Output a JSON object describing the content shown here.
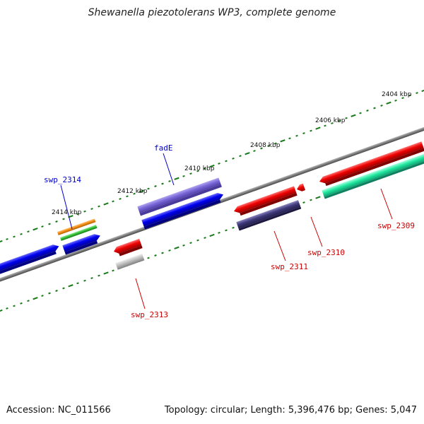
{
  "title": "Shewanella piezotolerans WP3, complete genome",
  "footer": {
    "accession": "Accession: NC_011566",
    "summary": "Topology: circular; Length: 5,396,476 bp; Genes: 5,047"
  },
  "scale_labels": [
    "2404 kbp",
    "2406 kbp",
    "2408 kbp",
    "2410 kbp",
    "2412 kbp",
    "2414 kbp"
  ],
  "gene_labels": {
    "swp_2314": "swp_2314",
    "fadE": "fadE",
    "swp_2313": "swp_2313",
    "swp_2311": "swp_2311",
    "swp_2310": "swp_2310",
    "swp_2309": "swp_2309"
  },
  "colors": {
    "backbone": "#7a7a7a",
    "forward_gene": "#0000ee",
    "reverse_gene": "#ee0000",
    "fadE_feature": "#7b68d8",
    "dark_feature": "#3f3a7a",
    "teal_feature": "#22e8a0",
    "gray_feature": "#b8b8b8",
    "orange_feature": "#f08a10",
    "green_feature": "#33bb33",
    "tick": "#1a7a1a",
    "label_forward": "#0000cc",
    "label_reverse": "#cc0000"
  }
}
